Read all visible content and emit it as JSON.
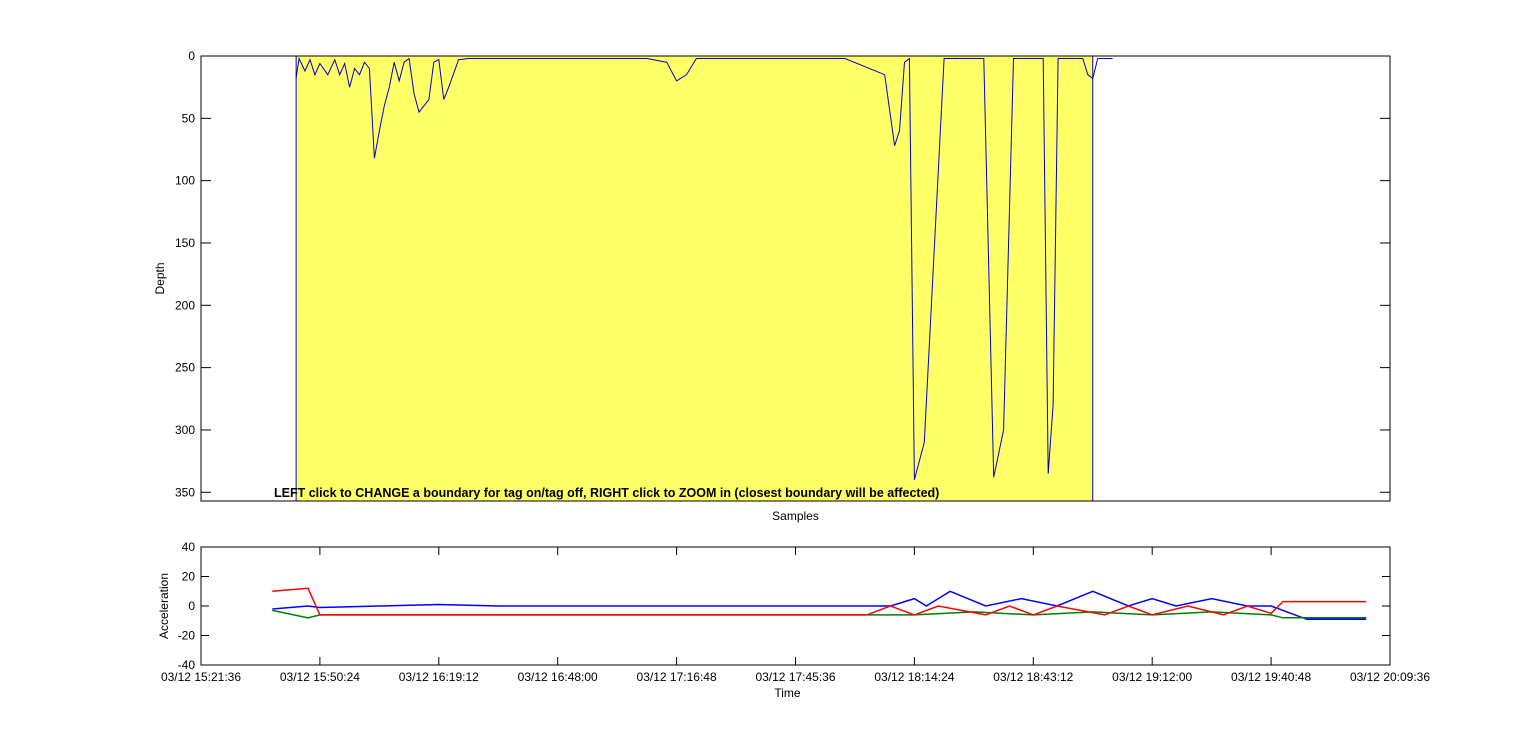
{
  "instruction": "LEFT click to CHANGE a boundary for tag on/tag off, RIGHT click to ZOOM in (closest boundary will be affected)",
  "colors": {
    "region": "#ffff66",
    "depth": "#0000cc",
    "acc_x": "#0000ff",
    "acc_y": "#007f00",
    "acc_z": "#ff0000"
  },
  "chart_data": [
    {
      "type": "area",
      "xlabel": "Samples",
      "ylabel": "Depth",
      "xlim": [
        0,
        12000
      ],
      "ylim": [
        0,
        357
      ],
      "y_reversed": true,
      "yticks": [
        "0",
        "50",
        "100",
        "150",
        "200",
        "250",
        "300",
        "350"
      ],
      "ytick_values": [
        0,
        50,
        100,
        150,
        200,
        250,
        300,
        350
      ],
      "tag_region": [
        960,
        9000
      ],
      "depth": {
        "x": [
          960,
          970,
          990,
          1050,
          1100,
          1150,
          1200,
          1280,
          1350,
          1400,
          1450,
          1500,
          1550,
          1600,
          1650,
          1700,
          1750,
          1800,
          1850,
          1900,
          1950,
          2000,
          2050,
          2100,
          2150,
          2200,
          2250,
          2300,
          2350,
          2400,
          2450,
          2500,
          2600,
          2700,
          3000,
          3500,
          4000,
          4500,
          4700,
          4800,
          4900,
          5000,
          5100,
          5500,
          6000,
          6500,
          6900,
          7000,
          7050,
          7100,
          7150,
          7200,
          7300,
          7500,
          7900,
          8000,
          8100,
          8200,
          8300,
          8500,
          8550,
          8600,
          8650,
          8700,
          8800,
          8900,
          8950,
          9000,
          9050,
          9200
        ],
        "y": [
          18,
          12,
          2,
          12,
          3,
          15,
          6,
          15,
          3,
          15,
          6,
          25,
          10,
          15,
          5,
          10,
          82,
          60,
          40,
          25,
          5,
          20,
          5,
          2,
          30,
          45,
          40,
          35,
          5,
          3,
          35,
          25,
          3,
          2,
          2,
          2,
          2,
          2,
          5,
          20,
          15,
          2,
          2,
          2,
          2,
          2,
          15,
          72,
          60,
          5,
          2,
          340,
          310,
          2,
          2,
          338,
          300,
          2,
          2,
          2,
          335,
          280,
          2,
          2,
          2,
          2,
          15,
          18,
          2,
          2
        ],
        "description_points": "approximate sampled depth trace"
      }
    },
    {
      "type": "line",
      "xlabel": "Time",
      "ylabel": "Acceleration",
      "ylim": [
        -40,
        40
      ],
      "yticks": [
        "40",
        "20",
        "0",
        "-20",
        "-40"
      ],
      "ytick_values": [
        40,
        20,
        0,
        -20,
        -40
      ],
      "xticks": [
        "03/12 15:21:36",
        "03/12 15:50:24",
        "03/12 16:19:12",
        "03/12 16:48:00",
        "03/12 17:16:48",
        "03/12 17:45:36",
        "03/12 18:14:24",
        "03/12 18:43:12",
        "03/12 19:12:00",
        "03/12 19:40:48",
        "03/12 20:09:36"
      ],
      "xtick_values": [
        0,
        1,
        2,
        3,
        4,
        5,
        6,
        7,
        8,
        9,
        10
      ],
      "xlim": [
        0,
        10
      ],
      "series": [
        {
          "color": "acc_x",
          "x": [
            0.6,
            0.9,
            1.0,
            1.5,
            2.0,
            2.5,
            3.0,
            3.5,
            4.0,
            4.5,
            5.0,
            5.5,
            5.8,
            6.0,
            6.1,
            6.3,
            6.6,
            6.9,
            7.2,
            7.5,
            7.8,
            8.0,
            8.2,
            8.5,
            8.8,
            9.0,
            9.3,
            9.8
          ],
          "y": [
            -2,
            0,
            -1,
            0,
            1,
            0,
            0,
            0,
            0,
            0,
            0,
            0,
            0,
            5,
            0,
            10,
            0,
            5,
            0,
            10,
            0,
            5,
            0,
            5,
            0,
            0,
            -9,
            -9
          ]
        },
        {
          "color": "acc_y",
          "x": [
            0.6,
            0.9,
            1.0,
            2.0,
            3.0,
            4.0,
            5.0,
            5.5,
            6.0,
            6.5,
            7.0,
            7.5,
            8.0,
            8.5,
            9.0,
            9.1,
            9.8
          ],
          "y": [
            -3,
            -8,
            -6,
            -6,
            -6,
            -6,
            -6,
            -6,
            -6,
            -4,
            -6,
            -4,
            -6,
            -4,
            -6,
            -8,
            -8
          ]
        },
        {
          "color": "acc_z",
          "x": [
            0.6,
            0.9,
            1.0,
            2.0,
            3.0,
            4.0,
            5.0,
            5.6,
            5.8,
            6.0,
            6.2,
            6.6,
            6.8,
            7.0,
            7.2,
            7.6,
            7.8,
            8.0,
            8.3,
            8.6,
            8.8,
            9.0,
            9.1,
            9.8
          ],
          "y": [
            10,
            12,
            -6,
            -6,
            -6,
            -6,
            -6,
            -6,
            0,
            -6,
            0,
            -6,
            0,
            -6,
            0,
            -6,
            0,
            -6,
            0,
            -6,
            0,
            -5,
            3,
            3
          ]
        }
      ]
    }
  ]
}
